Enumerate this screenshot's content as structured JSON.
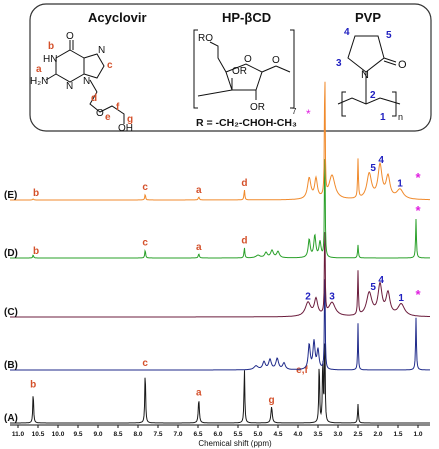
{
  "structures": {
    "acyclovir_title": "Acyclovir",
    "hpbcd_title": "HP-βCD",
    "pvp_title": "PVP",
    "r_group": "R = -CH₂-CHOH-CH₃",
    "acyclovir_atoms": {
      "o": "O",
      "hn": "HN",
      "n7": "N",
      "n9": "N",
      "n3": "N",
      "h2n": "H₂N",
      "oh": "OH",
      "ether_o": "O"
    },
    "hpbcd_atoms": {
      "ro": "RO",
      "or1": "OR",
      "or2": "OR",
      "o_ring": "O",
      "o_bridge": "O",
      "subscript": "7"
    },
    "pvp_atoms": {
      "n": "N",
      "o": "O",
      "subscript": "n"
    },
    "acyclovir_proton_labels": {
      "a": "a",
      "b": "b",
      "c": "c",
      "d": "d",
      "e": "e",
      "f": "f",
      "g": "g"
    },
    "pvp_position_labels": {
      "p1": "1",
      "p2": "2",
      "p3": "3",
      "p4": "4",
      "p5": "5"
    }
  },
  "chart_data": {
    "type": "line",
    "title": "",
    "xlabel": "Chemical shift (ppm)",
    "ylabel": "",
    "xlim": [
      11.2,
      0.7
    ],
    "x_reversed": true,
    "xticks": [
      11.0,
      10.5,
      10.0,
      9.5,
      9.0,
      8.5,
      8.0,
      7.5,
      7.0,
      6.5,
      6.0,
      5.5,
      5.0,
      4.5,
      4.0,
      3.5,
      3.0,
      2.5,
      2.0,
      1.5,
      1.0
    ],
    "xtick_labels": [
      "11.0",
      "10.5",
      "10.0",
      "9.5",
      "9.0",
      "8.5",
      "8.0",
      "7.5",
      "7.0",
      "6.5",
      "6.0",
      "5.5",
      "5.0",
      "4.5",
      "4.0",
      "3.5",
      "3.0",
      "2.5",
      "2.0",
      "1.5",
      "1.0"
    ],
    "series": [
      {
        "name": "(A)",
        "color": "#1a1a1a",
        "baseline": 0,
        "peaks": [
          {
            "x": 10.62,
            "h": 0.33,
            "w": 0.012
          },
          {
            "x": 7.82,
            "h": 0.56,
            "w": 0.012
          },
          {
            "x": 6.48,
            "h": 0.25,
            "w": 0.016
          },
          {
            "x": 5.34,
            "h": 0.58,
            "w": 0.012
          },
          {
            "x": 4.66,
            "h": 0.17,
            "w": 0.02
          },
          {
            "x": 3.47,
            "h": 0.65,
            "w": 0.012
          },
          {
            "x": 3.38,
            "h": 0.7,
            "w": 0.012
          },
          {
            "x": 3.33,
            "h": 1.0,
            "w": 0.01
          },
          {
            "x": 2.5,
            "h": 0.2,
            "w": 0.012
          }
        ],
        "annotations": [
          {
            "text": "b",
            "x": 10.62,
            "color": "#d4502a"
          },
          {
            "text": "c",
            "x": 7.82,
            "color": "#d4502a"
          },
          {
            "text": "a",
            "x": 6.48,
            "color": "#d4502a"
          },
          {
            "text": "g",
            "x": 4.66,
            "color": "#d4502a"
          },
          {
            "text": "e,f",
            "x": 3.9,
            "color": "#d4502a"
          }
        ]
      },
      {
        "name": "(B)",
        "color": "#1f2a8a",
        "baseline": 0,
        "peaks": [
          {
            "x": 5.05,
            "h": 0.07,
            "w": 0.06
          },
          {
            "x": 4.85,
            "h": 0.14,
            "w": 0.04
          },
          {
            "x": 4.7,
            "h": 0.18,
            "w": 0.04
          },
          {
            "x": 4.52,
            "h": 0.2,
            "w": 0.04
          },
          {
            "x": 4.35,
            "h": 0.12,
            "w": 0.04
          },
          {
            "x": 3.72,
            "h": 0.45,
            "w": 0.03
          },
          {
            "x": 3.6,
            "h": 0.5,
            "w": 0.03
          },
          {
            "x": 3.5,
            "h": 0.35,
            "w": 0.03
          },
          {
            "x": 3.33,
            "h": 1.0,
            "w": 0.01
          },
          {
            "x": 2.5,
            "h": 0.85,
            "w": 0.01
          },
          {
            "x": 1.05,
            "h": 0.95,
            "w": 0.012
          }
        ],
        "annotations": []
      },
      {
        "name": "(C)",
        "color": "#6b1c3c",
        "baseline": 0,
        "peaks": [
          {
            "x": 3.75,
            "h": 0.25,
            "w": 0.08
          },
          {
            "x": 3.55,
            "h": 0.3,
            "w": 0.05
          },
          {
            "x": 3.33,
            "h": 1.0,
            "w": 0.01
          },
          {
            "x": 3.15,
            "h": 0.25,
            "w": 0.1
          },
          {
            "x": 2.5,
            "h": 0.8,
            "w": 0.012
          },
          {
            "x": 2.22,
            "h": 0.42,
            "w": 0.08
          },
          {
            "x": 1.95,
            "h": 0.55,
            "w": 0.06
          },
          {
            "x": 1.75,
            "h": 0.4,
            "w": 0.06
          },
          {
            "x": 1.42,
            "h": 0.22,
            "w": 0.1
          }
        ],
        "annotations": [
          {
            "text": "2",
            "x": 3.75,
            "color": "#2020c0"
          },
          {
            "text": "3",
            "x": 3.15,
            "color": "#2020c0"
          },
          {
            "text": "5",
            "x": 2.12,
            "color": "#2020c0"
          },
          {
            "text": "4",
            "x": 1.92,
            "color": "#2020c0"
          },
          {
            "text": "1",
            "x": 1.42,
            "color": "#2020c0"
          },
          {
            "text": "*",
            "x": 1.0,
            "color": "#e020e0",
            "low": true
          }
        ]
      },
      {
        "name": "(D)",
        "color": "#2aa02a",
        "baseline": 0,
        "peaks": [
          {
            "x": 10.62,
            "h": 0.06,
            "w": 0.012
          },
          {
            "x": 7.82,
            "h": 0.16,
            "w": 0.012
          },
          {
            "x": 6.48,
            "h": 0.08,
            "w": 0.016
          },
          {
            "x": 5.34,
            "h": 0.2,
            "w": 0.012
          },
          {
            "x": 5.0,
            "h": 0.05,
            "w": 0.06
          },
          {
            "x": 4.8,
            "h": 0.1,
            "w": 0.04
          },
          {
            "x": 4.65,
            "h": 0.14,
            "w": 0.04
          },
          {
            "x": 4.5,
            "h": 0.12,
            "w": 0.04
          },
          {
            "x": 3.72,
            "h": 0.35,
            "w": 0.03
          },
          {
            "x": 3.58,
            "h": 0.42,
            "w": 0.03
          },
          {
            "x": 3.45,
            "h": 0.3,
            "w": 0.03
          },
          {
            "x": 3.33,
            "h": 1.0,
            "w": 0.01
          },
          {
            "x": 2.5,
            "h": 0.25,
            "w": 0.012
          },
          {
            "x": 1.05,
            "h": 0.75,
            "w": 0.012
          }
        ],
        "annotations": [
          {
            "text": "b",
            "x": 10.55,
            "color": "#d4502a"
          },
          {
            "text": "c",
            "x": 7.82,
            "color": "#d4502a"
          },
          {
            "text": "a",
            "x": 6.48,
            "color": "#d4502a"
          },
          {
            "text": "d",
            "x": 5.34,
            "color": "#d4502a"
          },
          {
            "text": "*",
            "x": 1.0,
            "color": "#e020e0"
          }
        ]
      },
      {
        "name": "(E)",
        "color": "#f08a2c",
        "baseline": 0,
        "peaks": [
          {
            "x": 10.62,
            "h": 0.02,
            "w": 0.012
          },
          {
            "x": 7.82,
            "h": 0.1,
            "w": 0.012
          },
          {
            "x": 6.48,
            "h": 0.05,
            "w": 0.016
          },
          {
            "x": 5.34,
            "h": 0.17,
            "w": 0.012
          },
          {
            "x": 3.72,
            "h": 0.35,
            "w": 0.05
          },
          {
            "x": 3.55,
            "h": 0.33,
            "w": 0.04
          },
          {
            "x": 3.33,
            "h": 1.0,
            "w": 0.01
          },
          {
            "x": 3.15,
            "h": 0.4,
            "w": 0.09
          },
          {
            "x": 2.5,
            "h": 0.65,
            "w": 0.012
          },
          {
            "x": 2.22,
            "h": 0.42,
            "w": 0.07
          },
          {
            "x": 1.95,
            "h": 0.55,
            "w": 0.06
          },
          {
            "x": 1.75,
            "h": 0.36,
            "w": 0.06
          },
          {
            "x": 1.45,
            "h": 0.16,
            "w": 0.1
          }
        ],
        "annotations": [
          {
            "text": "b",
            "x": 10.55,
            "color": "#d4502a"
          },
          {
            "text": "c",
            "x": 7.82,
            "color": "#d4502a"
          },
          {
            "text": "a",
            "x": 6.48,
            "color": "#d4502a"
          },
          {
            "text": "d",
            "x": 5.34,
            "color": "#d4502a"
          },
          {
            "text": "5",
            "x": 2.12,
            "color": "#2020c0"
          },
          {
            "text": "4",
            "x": 1.92,
            "color": "#2020c0"
          },
          {
            "text": "1",
            "x": 1.45,
            "color": "#2020c0"
          },
          {
            "text": "*",
            "x": 1.0,
            "color": "#e020e0",
            "low": true
          }
        ]
      }
    ]
  }
}
